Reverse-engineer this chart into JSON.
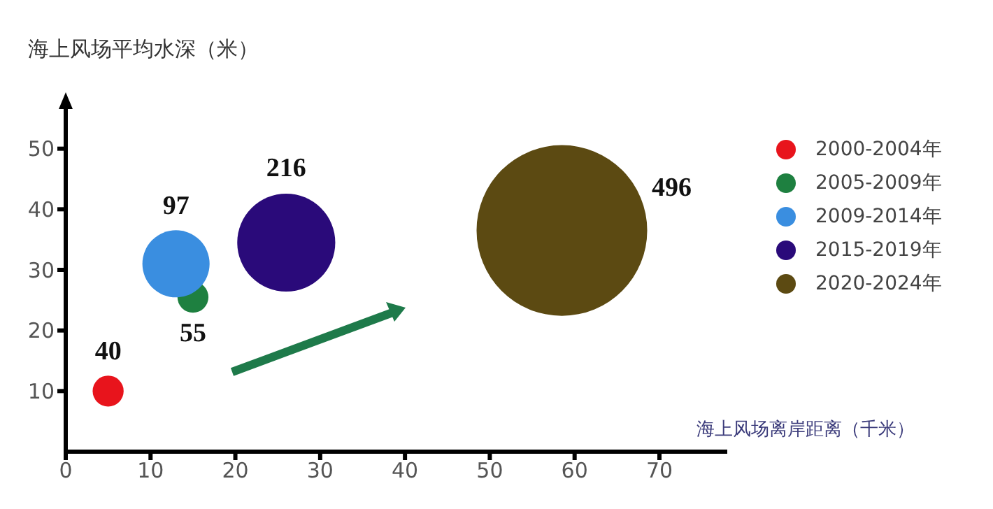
{
  "chart_data": {
    "type": "bubble",
    "ylabel": "海上风场平均水深（米）",
    "xlim": [
      0,
      78
    ],
    "xticks": [
      0,
      10,
      20,
      30,
      40,
      50,
      60,
      70
    ],
    "ylim": [
      0,
      57
    ],
    "yticks": [
      10,
      20,
      30,
      40,
      50
    ],
    "legend": "right",
    "grid": false,
    "annotations": [
      "海上风场离岸距离（千米）",
      {
        "text": "40",
        "x": 5,
        "y": 10
      },
      {
        "text": "55",
        "x": 15,
        "y": 25.5
      },
      {
        "text": "97",
        "x": 13,
        "y": 31
      },
      {
        "text": "216",
        "x": 26,
        "y": 34.5
      },
      "496"
    ],
    "series": [
      {
        "name": "2000-2004年",
        "color": "#e8141c",
        "x": [
          5
        ],
        "values": [
          10
        ],
        "sizes": [
          0.033
        ]
      },
      {
        "name": "2005-2009年",
        "color": "#1e8040",
        "x": [
          15
        ],
        "values": [
          25.5
        ],
        "sizes": [
          0.033
        ]
      },
      {
        "name": "2009-2014年",
        "color": "#3a8ee0",
        "x": [
          13
        ],
        "values": [
          31
        ],
        "sizes": [
          0.155
        ]
      },
      {
        "name": "2015-2019年",
        "color": "#2a0a7a",
        "x": [
          26
        ],
        "values": [
          34.5
        ],
        "sizes": [
          0.33
        ]
      },
      {
        "name": "2020-2024年",
        "color": "#5c4a12",
        "x": [
          58.5
        ],
        "values": [
          36.5
        ],
        "sizes": [
          1
        ]
      }
    ]
  }
}
